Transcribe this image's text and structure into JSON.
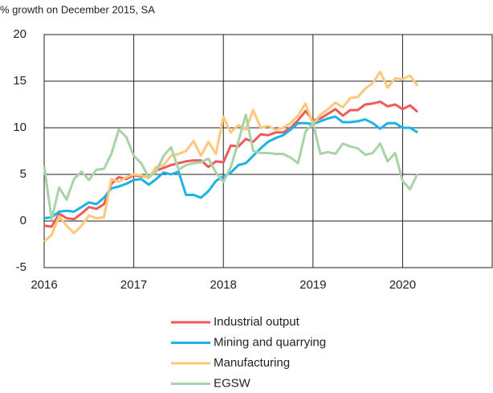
{
  "chart_data": {
    "type": "line",
    "subtitle": "% growth on December 2015, SA",
    "x": [
      2016,
      2016.083,
      2016.167,
      2016.25,
      2016.333,
      2016.417,
      2016.5,
      2016.583,
      2016.667,
      2016.75,
      2016.833,
      2016.917,
      2017,
      2017.083,
      2017.167,
      2017.25,
      2017.333,
      2017.417,
      2017.5,
      2017.583,
      2017.667,
      2017.75,
      2017.833,
      2017.917,
      2018,
      2018.083,
      2018.167,
      2018.25,
      2018.333,
      2018.417,
      2018.5,
      2018.583,
      2018.667,
      2018.75,
      2018.833,
      2018.917,
      2019,
      2019.083,
      2019.167,
      2019.25,
      2019.333,
      2019.417,
      2019.5,
      2019.583,
      2019.667,
      2019.75,
      2019.833,
      2019.917,
      2020,
      2020.083,
      2020.167
    ],
    "series": [
      {
        "name": "Industrial output",
        "color": "#f05a5a",
        "values": [
          -0.5,
          -0.6,
          0.8,
          0.3,
          0.2,
          0.8,
          1.5,
          1.3,
          1.8,
          4.0,
          4.7,
          4.5,
          4.9,
          4.8,
          4.7,
          5.4,
          5.7,
          6.0,
          6.2,
          6.4,
          6.5,
          6.5,
          5.8,
          6.4,
          6.3,
          8.1,
          8.0,
          8.8,
          8.5,
          9.3,
          9.2,
          9.5,
          9.5,
          10.0,
          10.8,
          11.8,
          10.8,
          11.0,
          11.5,
          12.0,
          11.3,
          11.9,
          11.9,
          12.5,
          12.6,
          12.8,
          12.3,
          12.5,
          12.0,
          12.4,
          11.7
        ]
      },
      {
        "name": "Mining and quarrying",
        "color": "#1ab4e8",
        "values": [
          0.3,
          0.4,
          1.0,
          1.1,
          1.0,
          1.5,
          2.0,
          1.8,
          2.5,
          3.5,
          3.7,
          4.0,
          4.4,
          4.5,
          3.9,
          4.5,
          5.2,
          5.0,
          5.3,
          2.8,
          2.8,
          2.5,
          3.2,
          4.3,
          4.8,
          5.2,
          6.0,
          6.2,
          7.0,
          7.8,
          8.5,
          8.9,
          9.2,
          9.8,
          10.5,
          10.5,
          10.4,
          10.7,
          11.0,
          11.2,
          10.6,
          10.6,
          10.7,
          10.9,
          10.5,
          9.9,
          10.5,
          10.5,
          10.0,
          10.0,
          9.5
        ]
      },
      {
        "name": "Manufacturing",
        "color": "#ffc77a",
        "values": [
          -2.2,
          -1.5,
          0.5,
          -0.5,
          -1.3,
          -0.5,
          0.6,
          0.3,
          0.4,
          4.5,
          4.2,
          4.7,
          5.0,
          4.9,
          4.6,
          5.8,
          6.0,
          7.0,
          7.2,
          7.5,
          8.6,
          7.0,
          8.5,
          7.2,
          11.2,
          9.5,
          10.3,
          9.8,
          11.9,
          10.0,
          10.2,
          9.8,
          10.0,
          10.5,
          11.3,
          12.6,
          10.4,
          11.4,
          12.0,
          12.7,
          12.2,
          13.2,
          13.3,
          14.2,
          14.8,
          16.0,
          14.3,
          15.3,
          15.2,
          15.6,
          14.5
        ]
      },
      {
        "name": "EGSW",
        "color": "#a9d3a6",
        "values": [
          5.9,
          0.2,
          3.6,
          2.3,
          4.5,
          5.3,
          4.4,
          5.5,
          5.6,
          7.2,
          9.8,
          9.0,
          7.0,
          6.2,
          4.7,
          5.3,
          7.0,
          7.9,
          5.5,
          6.0,
          6.2,
          6.3,
          6.7,
          5.2,
          4.2,
          5.8,
          8.5,
          11.4,
          7.5,
          7.3,
          7.3,
          7.2,
          7.2,
          6.8,
          6.2,
          9.6,
          10.5,
          7.2,
          7.4,
          7.2,
          8.3,
          8.0,
          7.8,
          7.1,
          7.3,
          8.3,
          6.4,
          7.3,
          4.3,
          3.4,
          5.1
        ]
      }
    ],
    "xlim": [
      2016,
      2021
    ],
    "xticks": [
      2016,
      2017,
      2018,
      2019,
      2020
    ],
    "ylim": [
      -5,
      20
    ],
    "yticks": [
      -5,
      0,
      5,
      10,
      15,
      20
    ],
    "grid": true
  }
}
